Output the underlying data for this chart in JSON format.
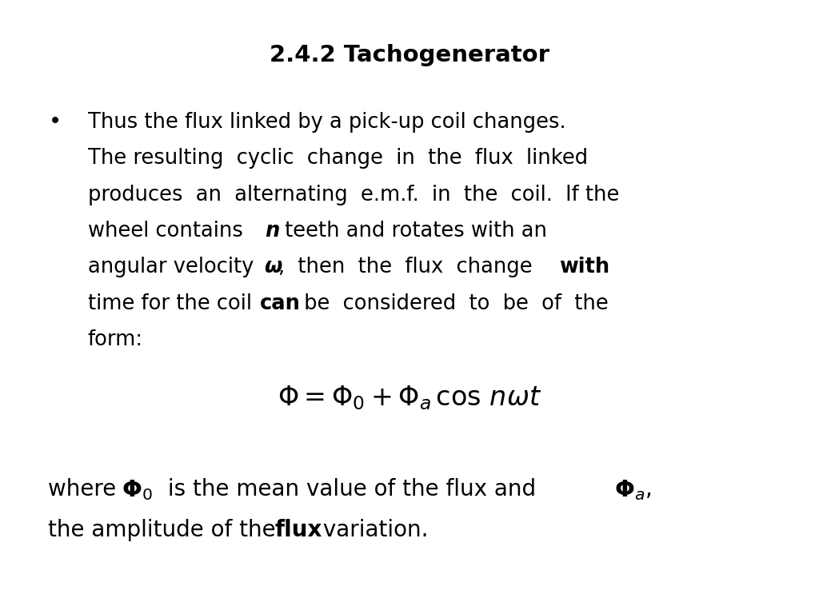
{
  "title": "2.4.2 Tachogenerator",
  "title_fontsize": 21,
  "background_color": "#ffffff",
  "text_color": "#000000",
  "figsize": [
    10.24,
    7.68
  ],
  "dpi": 100,
  "body_fontsize": 18.5,
  "formula_fontsize": 24,
  "where_fontsize": 20
}
